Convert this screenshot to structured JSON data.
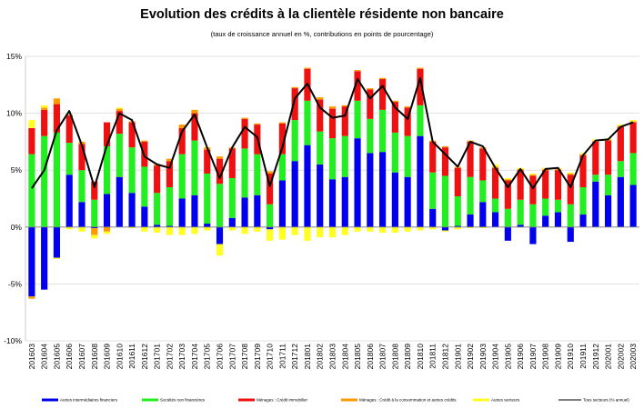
{
  "chart_data": {
    "type": "bar",
    "title": "Evolution  des crédits à la clientèle résidente non bancaire",
    "subtitle": "(taux de croissance annuel en %, contributions en points de pourcentage)",
    "ylim": [
      -10,
      15
    ],
    "yticks": [
      "-10%",
      "-5%",
      "0%",
      "5%",
      "10%",
      "15%"
    ],
    "ytick_values": [
      -10,
      -5,
      0,
      5,
      10,
      15
    ],
    "grid": true,
    "legend_position": "bottom",
    "categories": [
      "201603",
      "201604",
      "201605",
      "201606",
      "201607",
      "201608",
      "201609",
      "201610",
      "201611",
      "201612",
      "201701",
      "201702",
      "201703",
      "201704",
      "201705",
      "201706",
      "201707",
      "201708",
      "201709",
      "201710",
      "201711",
      "201712",
      "201801",
      "201802",
      "201803",
      "201804",
      "201805",
      "201806",
      "201807",
      "201808",
      "201809",
      "201810",
      "201811",
      "201812",
      "201901",
      "201902",
      "201903",
      "201904",
      "201905",
      "201906",
      "201907",
      "201908",
      "201909",
      "201910",
      "201911",
      "201912",
      "202001",
      "202002",
      "202003"
    ],
    "series": [
      {
        "name": "Autres intermédiaires financiers",
        "color": "#0000EE",
        "values": [
          -6.1,
          -5.5,
          -2.7,
          4.6,
          2.2,
          -0.1,
          2.9,
          4.4,
          3.0,
          1.8,
          0.2,
          0.1,
          2.5,
          2.8,
          0.3,
          -1.5,
          0.8,
          2.6,
          2.8,
          -0.2,
          4.1,
          5.8,
          7.2,
          5.5,
          4.2,
          4.4,
          7.8,
          6.5,
          6.6,
          4.8,
          4.4,
          8.0,
          1.6,
          -0.3,
          0.1,
          1.1,
          2.2,
          1.3,
          -1.2,
          0.2,
          -1.5,
          1.0,
          1.3,
          -1.3,
          1.1,
          4.0,
          2.8,
          4.4,
          3.7
        ]
      },
      {
        "name": "Sociétés non financières",
        "color": "#22EE22",
        "values": [
          6.4,
          8.0,
          8.3,
          2.8,
          2.8,
          2.4,
          4.2,
          3.8,
          4.0,
          3.5,
          2.8,
          3.4,
          3.9,
          4.8,
          4.4,
          3.8,
          3.5,
          4.3,
          3.6,
          2.0,
          2.3,
          3.6,
          3.9,
          2.9,
          3.6,
          3.6,
          3.3,
          3.0,
          3.7,
          3.5,
          3.6,
          2.7,
          3.2,
          4.5,
          2.6,
          3.3,
          1.9,
          1.2,
          1.6,
          2.2,
          2.0,
          1.5,
          1.1,
          2.0,
          2.4,
          0.6,
          1.8,
          1.4,
          2.8
        ]
      },
      {
        "name": "Ménages : Crédit immobilier",
        "color": "#EE1111",
        "values": [
          2.3,
          2.3,
          2.5,
          2.4,
          2.3,
          1.6,
          2.1,
          2.0,
          2.2,
          2.2,
          2.4,
          2.3,
          2.3,
          2.4,
          2.1,
          2.2,
          2.6,
          2.6,
          2.6,
          2.7,
          2.7,
          2.8,
          2.8,
          2.8,
          2.6,
          2.6,
          2.6,
          2.6,
          2.7,
          2.7,
          2.5,
          3.2,
          2.7,
          2.5,
          2.5,
          3.1,
          2.8,
          2.7,
          2.5,
          2.6,
          2.5,
          2.5,
          2.6,
          2.6,
          2.8,
          2.9,
          3.0,
          3.0,
          2.7
        ]
      },
      {
        "name": "Ménages : Crédit à la consommation et autres crédits",
        "color": "#FF9900",
        "values": [
          -0.2,
          0.2,
          0.5,
          0.1,
          0.2,
          -0.6,
          -0.4,
          0.2,
          0.1,
          0.1,
          0.1,
          0.2,
          0.3,
          0.3,
          0.2,
          0.2,
          0.1,
          0.1,
          0.1,
          0.2,
          0.1,
          0.1,
          0.1,
          0.2,
          0.2,
          0.1,
          0.1,
          0.1,
          0.1,
          0.1,
          0.1,
          0.1,
          0.1,
          0.1,
          0.1,
          0.1,
          0.1,
          0.1,
          0.1,
          0.1,
          0.1,
          0.1,
          0.1,
          0.1,
          0.1,
          0.1,
          0.1,
          0.1,
          0.1
        ]
      },
      {
        "name": "Autres secteurs",
        "color": "#FFFF22",
        "values": [
          0.7,
          0.2,
          -0.1,
          -0.2,
          -0.4,
          -0.3,
          -0.2,
          0.1,
          -0.1,
          -0.4,
          -0.5,
          -0.7,
          -0.7,
          -0.6,
          -0.3,
          -1.0,
          -0.3,
          -0.6,
          -0.4,
          -1.0,
          -1.1,
          -0.7,
          -1.2,
          -0.9,
          -0.9,
          -0.7,
          -0.4,
          -0.4,
          -0.5,
          -0.5,
          -0.4,
          -0.3,
          -0.2,
          -0.1,
          -0.2,
          -0.1,
          -0.1,
          0.2,
          0.1,
          0.1,
          0.1,
          0.1,
          0.1,
          0.1,
          0.1,
          0.1,
          0.1,
          0.1,
          0.1
        ]
      },
      {
        "name": "Tous secteurs (% annuel)",
        "color": "#000000",
        "type": "line",
        "values": [
          3.4,
          5.0,
          8.5,
          10.2,
          7.2,
          3.5,
          7.2,
          10.0,
          9.4,
          6.2,
          5.5,
          5.2,
          8.4,
          9.9,
          7.0,
          4.3,
          7.0,
          8.8,
          7.9,
          3.6,
          7.0,
          11.3,
          12.6,
          10.5,
          9.6,
          9.8,
          13.0,
          11.3,
          12.4,
          10.5,
          9.5,
          13.1,
          7.5,
          6.4,
          5.3,
          7.5,
          7.1,
          5.2,
          3.5,
          5.1,
          3.4,
          5.1,
          5.2,
          3.5,
          6.3,
          7.6,
          7.7,
          8.8,
          9.2
        ]
      }
    ]
  }
}
